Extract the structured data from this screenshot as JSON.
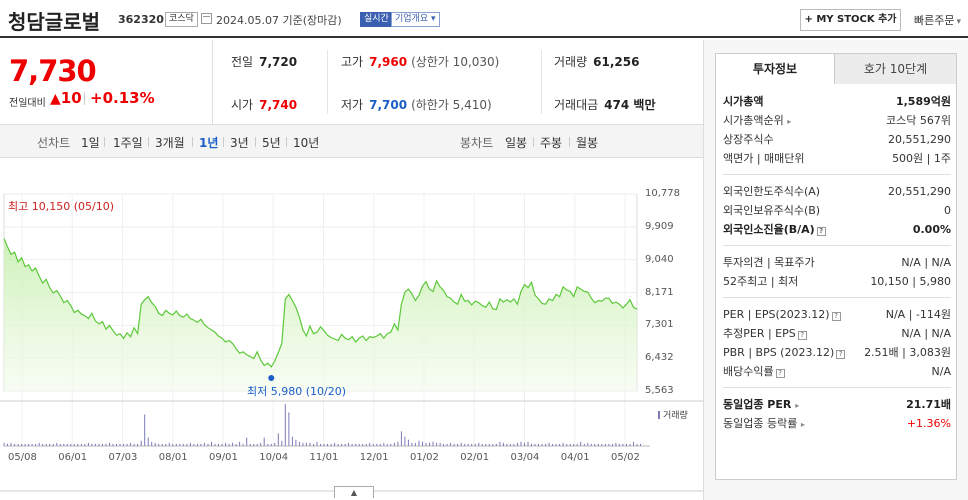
{
  "header": {
    "name": "청담글로벌",
    "code": "362320",
    "market": "코스닥",
    "date": "2024.05.07  기준(장마감)",
    "realtime": "실시간",
    "company_info": "기업개요",
    "mystock": "+ MY STOCK 추가",
    "quick_order": "빠른주문"
  },
  "price": {
    "current": "7,730",
    "change_label": "전일대비",
    "change": "10",
    "change_rate": "+0.13%"
  },
  "quote": {
    "prev_label": "전일",
    "prev": "7,720",
    "high_label": "고가",
    "high": "7,960",
    "upper_limit": "(상한가 10,030)",
    "volume_label": "거래량",
    "volume": "61,256",
    "open_label": "시가",
    "open": "7,740",
    "low_label": "저가",
    "low": "7,700",
    "lower_limit": "(하한가 5,410)",
    "amount_label": "거래대금",
    "amount": "474 백만"
  },
  "periods": {
    "line_label": "선차트",
    "line_items": [
      "1일",
      "1주일",
      "3개월",
      "1년",
      "3년",
      "5년",
      "10년"
    ],
    "active": "1년",
    "candle_label": "봉차트",
    "candle_items": [
      "일봉",
      "주봉",
      "월봉"
    ]
  },
  "chart_data": {
    "type": "area",
    "ylim": [
      5563,
      10778
    ],
    "yticks": [
      "10,778",
      "9,909",
      "9,040",
      "8,171",
      "7,301",
      "6,432",
      "5,563"
    ],
    "xticks": [
      "05/08",
      "06/01",
      "07/03",
      "08/01",
      "09/01",
      "10/04",
      "11/01",
      "12/01",
      "01/02",
      "02/01",
      "03/04",
      "04/01",
      "05/02"
    ],
    "high_label": "최고 10,150 (05/10)",
    "low_label": "최저 5,980 (10/20)",
    "volume_legend": "거래량",
    "price": [
      9600,
      9380,
      9180,
      9240,
      8980,
      9090,
      8860,
      8900,
      8740,
      8820,
      8600,
      8420,
      8520,
      8300,
      8160,
      8220,
      8080,
      7900,
      7960,
      7820,
      7640,
      7700,
      7600,
      7560,
      7480,
      7620,
      7420,
      7340,
      7400,
      7200,
      7300,
      7160,
      7040,
      7080,
      6960,
      7100,
      7000,
      7240,
      7080,
      7860,
      7980,
      8060,
      7900,
      7800,
      7620,
      7560,
      7700,
      7620,
      7580,
      7680,
      7560,
      7520,
      7600,
      7480,
      7440,
      7380,
      7460,
      7320,
      7240,
      7180,
      7120,
      7020,
      6960,
      6860,
      6900,
      6820,
      6680,
      6560,
      6600,
      6520,
      6480,
      6420,
      6600,
      6380,
      6240,
      6300,
      6200,
      6360,
      6580,
      6820,
      8000,
      8120,
      7960,
      7780,
      7520,
      7180,
      7020,
      7280,
      7080,
      7120,
      7260,
      7160,
      7040,
      6980,
      6940,
      6900,
      7060,
      6960,
      6920,
      7000,
      6860,
      6960,
      7020,
      6900,
      7000,
      6980,
      7020,
      7080,
      6960,
      7080,
      7120,
      7340,
      7180,
      7860,
      8180,
      8260,
      8140,
      7960,
      8100,
      8340,
      8460,
      8260,
      8200,
      8480,
      8320,
      8220,
      8060,
      8020,
      7920,
      7860,
      8120,
      7940,
      7960,
      7840,
      7940,
      7900,
      7820,
      7780,
      7920,
      7740,
      7720,
      8000,
      7920,
      7980,
      7920,
      8000,
      7860,
      8200,
      8380,
      8300,
      8440,
      8100,
      8000,
      7880,
      7860,
      8000,
      7960,
      8120,
      8060,
      8320,
      8240,
      8200,
      8060,
      8320,
      8260,
      8200,
      8180,
      8020,
      7900,
      7960,
      7940,
      8020,
      8020,
      7880,
      7920,
      7860,
      7760,
      7860,
      7980,
      7780,
      7730
    ],
    "volume": [
      3,
      2,
      3,
      2,
      2,
      2,
      2,
      2,
      2,
      2,
      3,
      2,
      2,
      2,
      2,
      3,
      2,
      2,
      2,
      2,
      2,
      2,
      2,
      2,
      3,
      2,
      2,
      2,
      2,
      2,
      3,
      2,
      2,
      2,
      2,
      2,
      3,
      2,
      2,
      5,
      30,
      8,
      4,
      3,
      2,
      2,
      2,
      3,
      2,
      2,
      2,
      2,
      2,
      3,
      2,
      2,
      2,
      3,
      2,
      4,
      2,
      2,
      2,
      3,
      2,
      3,
      2,
      4,
      2,
      8,
      2,
      2,
      2,
      3,
      8,
      2,
      2,
      3,
      12,
      5,
      40,
      32,
      9,
      6,
      4,
      3,
      3,
      3,
      2,
      4,
      2,
      2,
      2,
      2,
      3,
      2,
      2,
      2,
      3,
      2,
      2,
      2,
      2,
      2,
      3,
      2,
      2,
      2,
      3,
      2,
      2,
      3,
      4,
      14,
      9,
      6,
      3,
      3,
      5,
      4,
      3,
      3,
      4,
      3,
      3,
      2,
      2,
      3,
      2,
      2,
      3,
      2,
      2,
      2,
      2,
      3,
      2,
      2,
      2,
      2,
      2,
      4,
      3,
      2,
      2,
      2,
      3,
      4,
      3,
      4,
      2,
      2,
      2,
      2,
      2,
      3,
      2,
      2,
      2,
      3,
      2,
      2,
      2,
      2,
      4,
      2,
      3,
      2,
      2,
      2,
      2,
      2,
      2,
      2,
      3,
      2,
      2,
      2,
      2,
      4,
      2,
      2
    ]
  },
  "side": {
    "tab_invest": "투자정보",
    "tab_hoga": "호가 10단계",
    "market_cap_label": "시가총액",
    "market_cap": "1,589억원",
    "market_cap_rank_label": "시가총액순위",
    "market_cap_rank": "코스닥 567위",
    "shares_label": "상장주식수",
    "shares": "20,551,290",
    "par_label": "액면가 | 매매단위",
    "par": "500원 | 1주",
    "foreign_limit_label": "외국인한도주식수(A)",
    "foreign_limit": "20,551,290",
    "foreign_hold_label": "외국인보유주식수(B)",
    "foreign_hold": "0",
    "foreign_rate_label": "외국인소진율(B/A)",
    "foreign_rate": "0.00%",
    "opinion_label": "투자의견 | 목표주가",
    "opinion": "N/A | N/A",
    "week52_label": "52주최고 | 최저",
    "week52": "10,150 | 5,980",
    "per_label": "PER | EPS(2023.12)",
    "per": "N/A | -114원",
    "est_per_label": "추정PER | EPS",
    "est_per": "N/A | N/A",
    "pbr_label": "PBR | BPS (2023.12)",
    "pbr": "2.51배 | 3,083원",
    "dividend_label": "배당수익률",
    "dividend": "N/A",
    "sector_per_label": "동일업종 PER",
    "sector_per": "21.71배",
    "sector_chg_label": "동일업종 등락률",
    "sector_chg": "+1.36%"
  }
}
